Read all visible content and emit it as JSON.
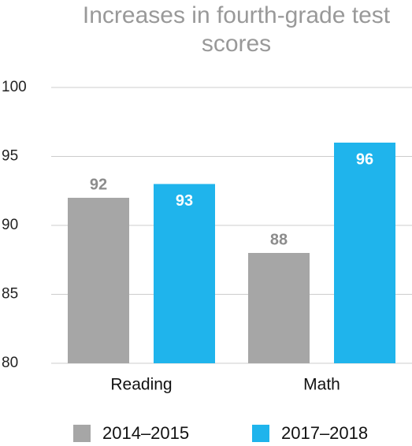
{
  "chart_data": {
    "type": "bar",
    "title": "Increases in fourth-grade test scores",
    "categories": [
      "Reading",
      "Math"
    ],
    "series": [
      {
        "name": "2014–2015",
        "color": "#a6a6a6",
        "values": [
          92,
          88
        ]
      },
      {
        "name": "2017–2018",
        "color": "#1fb4ec",
        "values": [
          93,
          96
        ]
      }
    ],
    "ylim": [
      80,
      100
    ],
    "yticks": [
      80,
      85,
      90,
      95,
      100
    ],
    "grid": true,
    "legend": "bottom"
  }
}
